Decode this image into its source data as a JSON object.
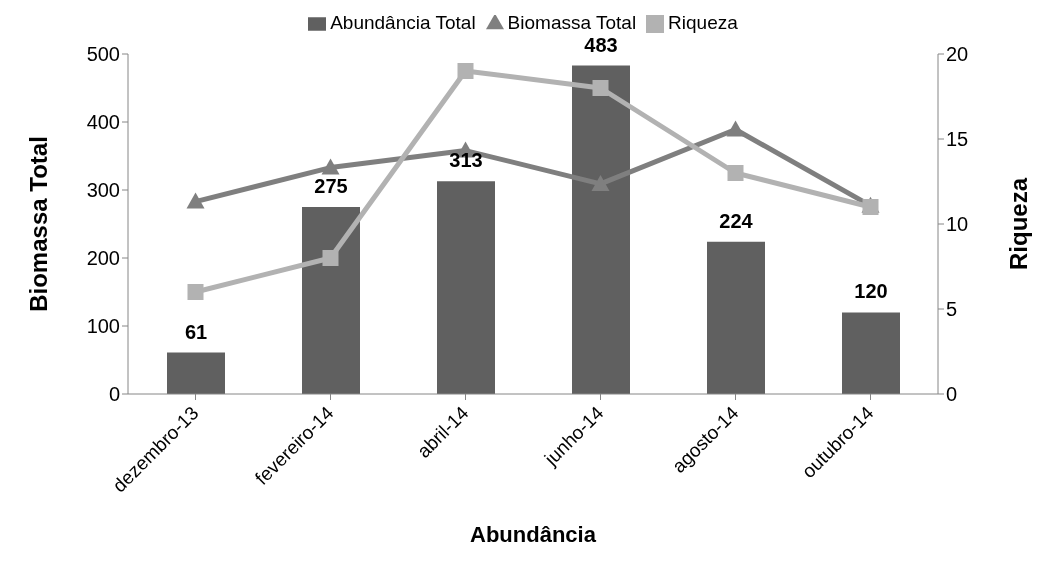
{
  "chart_data": {
    "type": "bar",
    "xlabel": "Abundância",
    "ylabel": "Biomassa Total",
    "y2label": "Riqueza",
    "categories": [
      "dezembro-13",
      "fevereiro-14",
      "abril-14",
      "junho-14",
      "agosto-14",
      "outubro-14"
    ],
    "series": [
      {
        "name": "Abundância Total",
        "color": "#606060",
        "values": [
          61,
          275,
          313,
          483,
          224,
          120
        ],
        "value_labels": [
          "61",
          "275",
          "313",
          "483",
          "224",
          "120"
        ]
      },
      {
        "name": "Biomassa Total",
        "type": "line",
        "color": "#7f7f7f",
        "marker": "triangle",
        "values": [
          283,
          333,
          358,
          309,
          389,
          277
        ]
      },
      {
        "name": "Riqueza",
        "type": "line",
        "color": "#b2b2b2",
        "marker": "square",
        "axis": "y2",
        "values": [
          6,
          8,
          19,
          18,
          13,
          11
        ]
      }
    ],
    "ylim": [
      0,
      500
    ],
    "yticks": [
      0,
      100,
      200,
      300,
      400,
      500
    ],
    "y2lim": [
      0,
      20
    ],
    "y2ticks": [
      0,
      5,
      10,
      15,
      20
    ],
    "grid": false,
    "legend": "top"
  }
}
